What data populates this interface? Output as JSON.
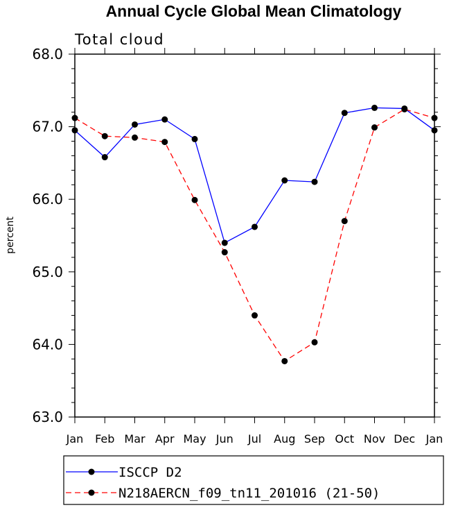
{
  "chart_data": {
    "type": "line",
    "title": "Annual Cycle Global Mean Climatology",
    "subtitle": "Total cloud",
    "xlabel": "",
    "ylabel": "percent",
    "categories": [
      "Jan",
      "Feb",
      "Mar",
      "Apr",
      "May",
      "Jun",
      "Jul",
      "Aug",
      "Sep",
      "Oct",
      "Nov",
      "Dec",
      "Jan"
    ],
    "ylim": [
      63.0,
      68.0
    ],
    "yticks": [
      "63.0",
      "64.0",
      "65.0",
      "66.0",
      "67.0",
      "68.0"
    ],
    "series": [
      {
        "name": "ISCCP D2",
        "color": "#0000ff",
        "dash": "solid",
        "values": [
          66.95,
          66.58,
          67.03,
          67.1,
          66.83,
          65.4,
          65.62,
          66.26,
          66.24,
          67.19,
          67.26,
          67.25,
          66.95
        ]
      },
      {
        "name": "N218AERCN_f09_tn11_201016 (21-50)",
        "color": "#ff0000",
        "dash": "dashed",
        "values": [
          67.12,
          66.87,
          66.85,
          66.79,
          65.99,
          65.27,
          64.4,
          63.77,
          64.03,
          65.7,
          66.99,
          67.24,
          67.12
        ]
      }
    ]
  }
}
